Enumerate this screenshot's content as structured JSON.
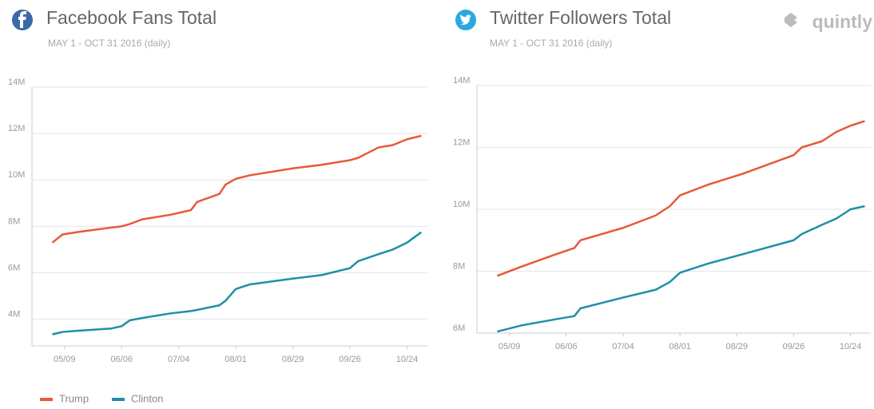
{
  "brand": "quintly",
  "chart_data": [
    {
      "type": "line",
      "title": "Facebook Fans Total",
      "subtitle": "MAY 1 - OCT 31 2016 (daily)",
      "x": [
        "05/03",
        "05/08",
        "05/15",
        "06/01",
        "06/06",
        "06/10",
        "06/16",
        "06/30",
        "07/10",
        "07/13",
        "07/24",
        "07/27",
        "08/01",
        "08/08",
        "08/29",
        "09/12",
        "09/26",
        "09/30",
        "10/10",
        "10/17",
        "10/24",
        "10/31"
      ],
      "series": [
        {
          "name": "Trump",
          "color": "#e8593a",
          "values": [
            7.3,
            7.65,
            7.75,
            7.95,
            8.0,
            8.1,
            8.3,
            8.5,
            8.7,
            9.05,
            9.4,
            9.8,
            10.05,
            10.2,
            10.5,
            10.65,
            10.85,
            10.95,
            11.4,
            11.5,
            11.75,
            11.9
          ]
        },
        {
          "name": "Clinton",
          "color": "#1f8fa6",
          "values": [
            3.35,
            3.45,
            3.5,
            3.6,
            3.7,
            3.95,
            4.05,
            4.25,
            4.35,
            4.4,
            4.6,
            4.8,
            5.3,
            5.5,
            5.75,
            5.9,
            6.2,
            6.5,
            6.8,
            7.0,
            7.3,
            7.75
          ]
        }
      ],
      "xlim": [
        "04/23",
        "11/03"
      ],
      "xticks": [
        "05/09",
        "06/06",
        "07/04",
        "08/01",
        "08/29",
        "09/26",
        "10/24"
      ],
      "ylim": [
        2.85,
        14
      ],
      "yticks": [
        {
          "value": 4,
          "label": "4M"
        },
        {
          "value": 6,
          "label": "6M"
        },
        {
          "value": 8,
          "label": "8M"
        },
        {
          "value": 10,
          "label": "10M"
        },
        {
          "value": 12,
          "label": "12M"
        },
        {
          "value": 14,
          "label": "14M"
        }
      ],
      "grid": true
    },
    {
      "type": "line",
      "title": "Twitter Followers Total",
      "subtitle": "MAY 1 - OCT 31 2016 (daily)",
      "x": [
        "05/03",
        "05/15",
        "06/01",
        "06/10",
        "06/13",
        "07/04",
        "07/20",
        "07/27",
        "08/01",
        "08/15",
        "09/01",
        "09/26",
        "09/30",
        "10/10",
        "10/17",
        "10/24",
        "10/31"
      ],
      "series": [
        {
          "color": "#e8593a",
          "values": [
            7.85,
            8.15,
            8.55,
            8.75,
            9.0,
            9.4,
            9.8,
            10.1,
            10.45,
            10.8,
            11.15,
            11.75,
            12.0,
            12.2,
            12.5,
            12.7,
            12.85
          ]
        },
        {
          "color": "#1f8fa6",
          "values": [
            6.05,
            6.25,
            6.45,
            6.55,
            6.8,
            7.15,
            7.4,
            7.65,
            7.95,
            8.25,
            8.55,
            9.0,
            9.2,
            9.5,
            9.7,
            10.0,
            10.1
          ]
        }
      ],
      "xlim": [
        "04/23",
        "11/03"
      ],
      "xticks": [
        "05/09",
        "06/06",
        "07/04",
        "08/01",
        "08/29",
        "09/26",
        "10/24"
      ],
      "ylim": [
        6,
        14
      ],
      "yticks": [
        {
          "value": 6,
          "label": "6M"
        },
        {
          "value": 8,
          "label": "8M"
        },
        {
          "value": 10,
          "label": "10M"
        },
        {
          "value": 12,
          "label": "12M"
        },
        {
          "value": 14,
          "label": "14M"
        }
      ],
      "grid": true
    }
  ]
}
